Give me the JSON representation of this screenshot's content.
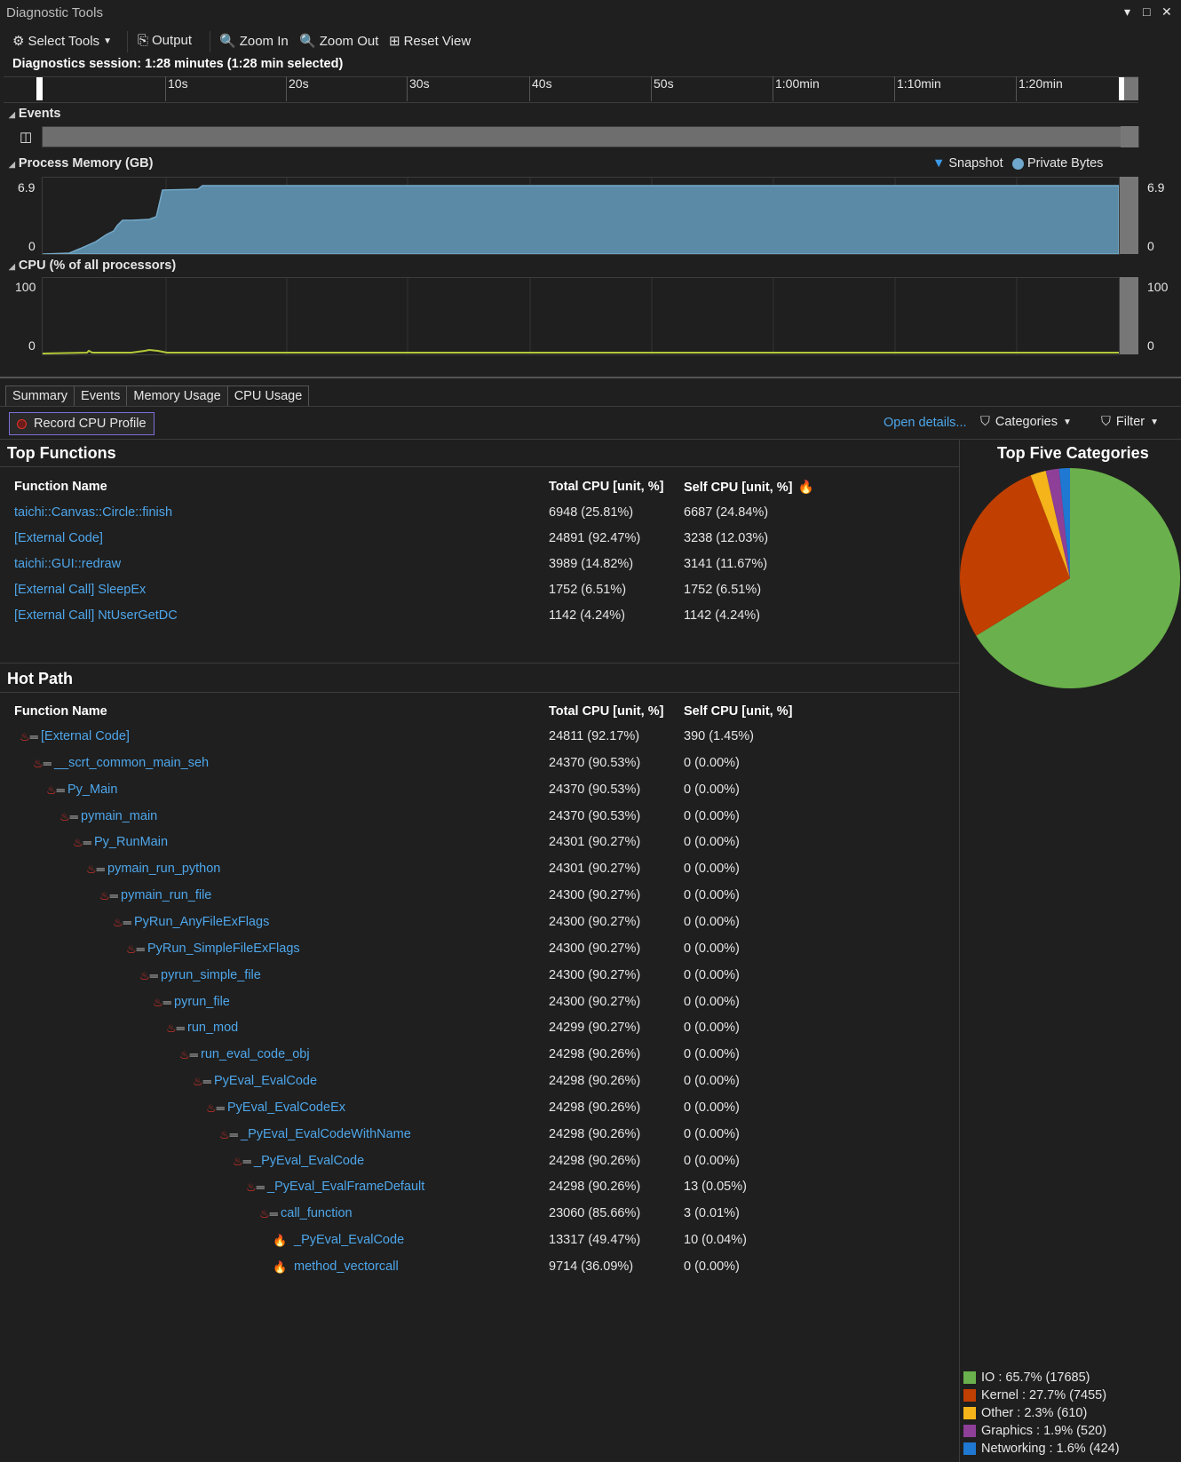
{
  "window": {
    "title": "Diagnostic Tools",
    "buttons": [
      "▾",
      "□",
      "✕"
    ]
  },
  "toolbar": {
    "select_tools": "Select Tools",
    "output": "Output",
    "zoom_in": "Zoom In",
    "zoom_out": "Zoom Out",
    "reset_view": "Reset View"
  },
  "session": "Diagnostics session: 1:28 minutes (1:28 min selected)",
  "ruler": {
    "labels": [
      "10s",
      "20s",
      "30s",
      "40s",
      "50s",
      "1:00min",
      "1:10min",
      "1:20min"
    ]
  },
  "events": {
    "title": "Events"
  },
  "memory": {
    "title": "Process Memory (GB)",
    "legend_snapshot": "Snapshot",
    "legend_private": "Private Bytes",
    "max": "6.9",
    "min": "0"
  },
  "cpu": {
    "title": "CPU (% of all processors)",
    "max": "100",
    "min": "0"
  },
  "tabs": [
    "Summary",
    "Events",
    "Memory Usage",
    "CPU Usage"
  ],
  "actions": {
    "record": "Record CPU Profile",
    "open_details": "Open details...",
    "categories": "Categories",
    "filter": "Filter"
  },
  "top_functions": {
    "title": "Top Functions",
    "headers": [
      "Function Name",
      "Total CPU [unit, %]",
      "Self CPU [unit, %]"
    ],
    "rows": [
      {
        "name": "taichi::Canvas::Circle::finish",
        "total": "6948 (25.81%)",
        "self": "6687 (24.84%)"
      },
      {
        "name": "[External Code]",
        "total": "24891 (92.47%)",
        "self": "3238 (12.03%)"
      },
      {
        "name": "taichi::GUI::redraw",
        "total": "3989 (14.82%)",
        "self": "3141 (11.67%)"
      },
      {
        "name": "[External Call] SleepEx",
        "total": "1752 (6.51%)",
        "self": "1752 (6.51%)"
      },
      {
        "name": "[External Call] NtUserGetDC",
        "total": "1142 (4.24%)",
        "self": "1142 (4.24%)"
      }
    ]
  },
  "hot_path": {
    "title": "Hot Path",
    "headers": [
      "Function Name",
      "Total CPU [unit, %]",
      "Self CPU [unit, %]"
    ],
    "rows": [
      {
        "name": "[External Code]",
        "total": "24811 (92.17%)",
        "self": "390 (1.45%)",
        "depth": 0,
        "icon": "hotpath"
      },
      {
        "name": "__scrt_common_main_seh",
        "total": "24370 (90.53%)",
        "self": "0 (0.00%)",
        "depth": 1,
        "icon": "hotpath"
      },
      {
        "name": "Py_Main",
        "total": "24370 (90.53%)",
        "self": "0 (0.00%)",
        "depth": 2,
        "icon": "hotpath"
      },
      {
        "name": "pymain_main",
        "total": "24370 (90.53%)",
        "self": "0 (0.00%)",
        "depth": 3,
        "icon": "hotpath"
      },
      {
        "name": "Py_RunMain",
        "total": "24301 (90.27%)",
        "self": "0 (0.00%)",
        "depth": 4,
        "icon": "hotpath"
      },
      {
        "name": "pymain_run_python",
        "total": "24301 (90.27%)",
        "self": "0 (0.00%)",
        "depth": 5,
        "icon": "hotpath"
      },
      {
        "name": "pymain_run_file",
        "total": "24300 (90.27%)",
        "self": "0 (0.00%)",
        "depth": 6,
        "icon": "hotpath"
      },
      {
        "name": "PyRun_AnyFileExFlags",
        "total": "24300 (90.27%)",
        "self": "0 (0.00%)",
        "depth": 7,
        "icon": "hotpath"
      },
      {
        "name": "PyRun_SimpleFileExFlags",
        "total": "24300 (90.27%)",
        "self": "0 (0.00%)",
        "depth": 8,
        "icon": "hotpath"
      },
      {
        "name": "pyrun_simple_file",
        "total": "24300 (90.27%)",
        "self": "0 (0.00%)",
        "depth": 9,
        "icon": "hotpath"
      },
      {
        "name": "pyrun_file",
        "total": "24300 (90.27%)",
        "self": "0 (0.00%)",
        "depth": 10,
        "icon": "hotpath"
      },
      {
        "name": "run_mod",
        "total": "24299 (90.27%)",
        "self": "0 (0.00%)",
        "depth": 11,
        "icon": "hotpath"
      },
      {
        "name": "run_eval_code_obj",
        "total": "24298 (90.26%)",
        "self": "0 (0.00%)",
        "depth": 12,
        "icon": "hotpath"
      },
      {
        "name": "PyEval_EvalCode",
        "total": "24298 (90.26%)",
        "self": "0 (0.00%)",
        "depth": 13,
        "icon": "hotpath"
      },
      {
        "name": "PyEval_EvalCodeEx",
        "total": "24298 (90.26%)",
        "self": "0 (0.00%)",
        "depth": 14,
        "icon": "hotpath"
      },
      {
        "name": "_PyEval_EvalCodeWithName",
        "total": "24298 (90.26%)",
        "self": "0 (0.00%)",
        "depth": 15,
        "icon": "hotpath"
      },
      {
        "name": "_PyEval_EvalCode",
        "total": "24298 (90.26%)",
        "self": "0 (0.00%)",
        "depth": 16,
        "icon": "hotpath"
      },
      {
        "name": "_PyEval_EvalFrameDefault",
        "total": "24298 (90.26%)",
        "self": "13 (0.05%)",
        "depth": 17,
        "icon": "hotpath"
      },
      {
        "name": "call_function",
        "total": "23060 (85.66%)",
        "self": "3 (0.01%)",
        "depth": 18,
        "icon": "hotpath"
      },
      {
        "name": "_PyEval_EvalCode",
        "total": "13317 (49.47%)",
        "self": "10 (0.04%)",
        "depth": 19,
        "icon": "flame"
      },
      {
        "name": "method_vectorcall",
        "total": "9714 (36.09%)",
        "self": "0 (0.00%)",
        "depth": 19,
        "icon": "flame"
      }
    ]
  },
  "categories": {
    "title": "Top Five Categories",
    "items": [
      {
        "label": "IO : 65.7% (17685)",
        "value": 17685,
        "color": "#6ab04c"
      },
      {
        "label": "Kernel : 27.7% (7455)",
        "value": 7455,
        "color": "#c13f00"
      },
      {
        "label": "Other : 2.3% (610)",
        "value": 610,
        "color": "#f4b41a"
      },
      {
        "label": "Graphics : 1.9% (520)",
        "value": 520,
        "color": "#8e3f98"
      },
      {
        "label": "Networking : 1.6% (424)",
        "value": 424,
        "color": "#1f78d1"
      }
    ]
  },
  "chart_data": {
    "type": "pie",
    "title": "Top Five Categories",
    "categories": [
      "IO",
      "Kernel",
      "Other",
      "Graphics",
      "Networking"
    ],
    "values": [
      17685,
      7455,
      610,
      520,
      424
    ]
  },
  "icons": {
    "gear": "gear-icon",
    "output": "output-icon",
    "zoom_in": "zoom-in-icon",
    "zoom_out": "zoom-out-icon",
    "reset": "reset-view-icon",
    "record": "record-icon",
    "flame": "flame-icon",
    "hotpath": "hot-path-icon",
    "funnel": "funnel-icon"
  }
}
